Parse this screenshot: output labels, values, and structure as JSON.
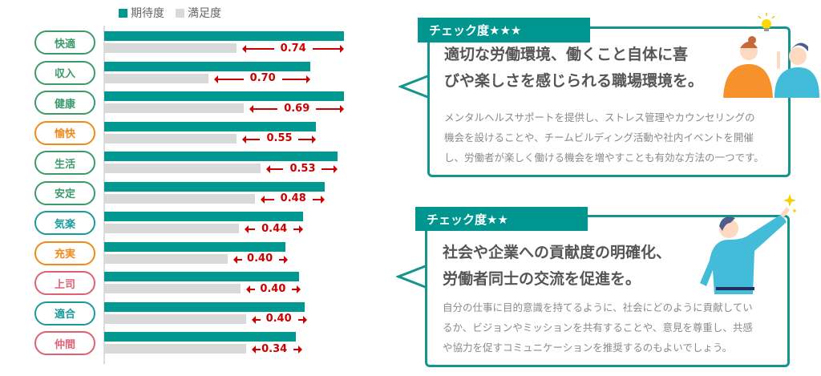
{
  "chart_data": {
    "type": "bar",
    "orientation": "horizontal",
    "legend": [
      "期待度",
      "満足度"
    ],
    "legend_position": "top",
    "categories": [
      "快適",
      "収入",
      "健康",
      "愉快",
      "生活",
      "安定",
      "気楽",
      "充実",
      "上司",
      "適合",
      "仲間"
    ],
    "category_colors": [
      "#3c9a6c",
      "#3c9a6c",
      "#3c9a6c",
      "#f08a1c",
      "#3c9a6c",
      "#3c9a6c",
      "#1a9a9a",
      "#f08a1c",
      "#e06074",
      "#1a9a9a",
      "#e06074"
    ],
    "series": [
      {
        "name": "期待度",
        "color": "#009891",
        "values": [
          4.15,
          3.92,
          4.15,
          3.96,
          4.11,
          4.02,
          3.87,
          3.75,
          3.84,
          3.88,
          3.82
        ]
      },
      {
        "name": "満足度",
        "color": "#d9d9d9",
        "values": [
          3.41,
          3.22,
          3.46,
          3.41,
          3.58,
          3.54,
          3.43,
          3.35,
          3.44,
          3.48,
          3.48
        ]
      }
    ],
    "gap_labels": [
      "0.74",
      "0.70",
      "0.69",
      "0.55",
      "0.53",
      "0.48",
      "0.44",
      "0.40",
      "0.40",
      "0.40",
      "0.34"
    ],
    "xlim": [
      2.5,
      4.15
    ],
    "grid": false
  },
  "panels": [
    {
      "tag": "チェック度★★★",
      "title_lines": [
        "適切な労働環境、働くこと自体に喜",
        "びや楽しさを感じられる職場環境を。"
      ],
      "body_lines": [
        "メンタルヘルスサポートを提供し、ストレス管理やカウンセリングの",
        "機会を設けることや、チームビルディング活動や社内イベントを開催",
        "し、労働者が楽しく働ける機会を増やすことも有効な方法の一つです。"
      ]
    },
    {
      "tag": "チェック度★★",
      "title_lines": [
        "社会や企業への貢献度の明確化、",
        "労働者同士の交流を促進を。"
      ],
      "body_lines": [
        "自分の仕事に目的意識を持てるように、社会にどのように貢献してい",
        "るか、ビジョンやミッションを共有することや、意見を尊重し、共感",
        "や協力を促すコミュニケーションを推奨するのもよいでしょう。"
      ]
    }
  ]
}
